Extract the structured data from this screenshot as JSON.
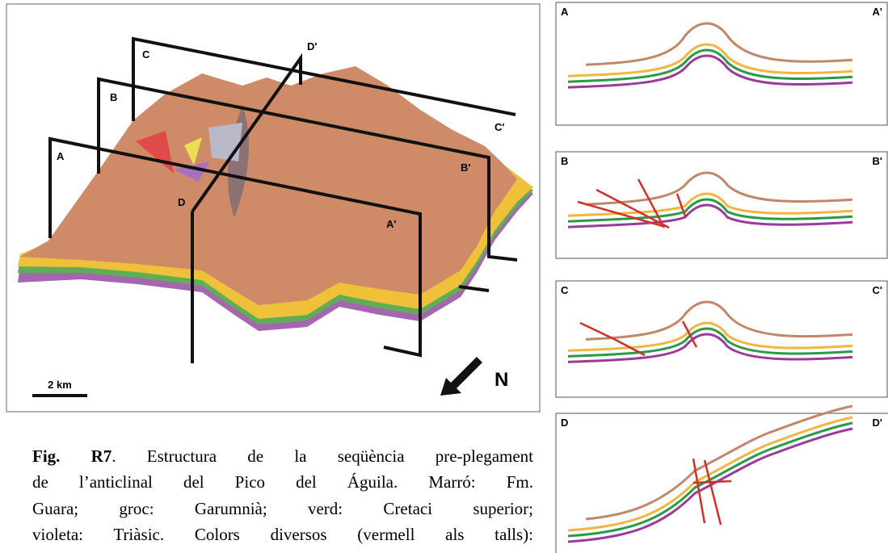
{
  "map": {
    "labels": [
      "A",
      "A'",
      "B",
      "B'",
      "C",
      "C'",
      "D",
      "D'"
    ],
    "scale": "2 km",
    "north": "N"
  },
  "sections": [
    {
      "start": "A",
      "end": "A'"
    },
    {
      "start": "B",
      "end": "B'"
    },
    {
      "start": "C",
      "end": "C'"
    },
    {
      "start": "D",
      "end": "D'"
    }
  ],
  "caption": {
    "label": "Fig. R7",
    "lines": [
      ". Estructura de la seqüència pre-plegament",
      "de l’anticlinal del Pico del Águila. Marró: Fm.",
      "Guara; groc: Garumnià; verd: Cretaci superior;",
      "violeta: Triàsic. Colors diversos (vermell als talls):"
    ]
  }
}
